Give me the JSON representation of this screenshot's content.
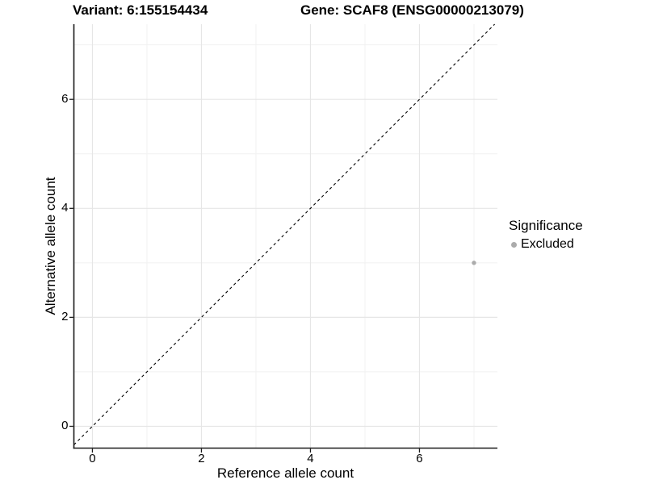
{
  "chart_data": {
    "type": "scatter",
    "title_left": "Variant: 6:155154434",
    "title_right": "Gene: SCAF8 (ENSG00000213079)",
    "xlabel": "Reference allele count",
    "ylabel": "Alternative allele count",
    "xlim": [
      -0.34,
      7.43
    ],
    "ylim": [
      -0.4,
      7.38
    ],
    "x_ticks": [
      0,
      2,
      4,
      6
    ],
    "y_ticks": [
      0,
      2,
      4,
      6
    ],
    "x_minor_ticks": [
      1,
      3,
      5,
      7
    ],
    "y_minor_ticks": [
      1,
      3,
      5,
      7
    ],
    "grid": "major+minor",
    "identity_line": {
      "equation": "y = x",
      "style": "dashed",
      "color": "#000000"
    },
    "series": [
      {
        "name": "Excluded",
        "color": "#ababab",
        "points": [
          {
            "x": 7,
            "y": 3
          }
        ]
      }
    ],
    "legend": {
      "title": "Significance",
      "position": "right",
      "entries": [
        {
          "label": "Excluded",
          "color": "#ababab"
        }
      ]
    },
    "style": {
      "background": "#ffffff",
      "axis_line_color": "#1a1a1a",
      "grid_major_color": "#e6e6e6",
      "grid_minor_color": "#f1f1f1",
      "text_color": "#000000"
    }
  }
}
